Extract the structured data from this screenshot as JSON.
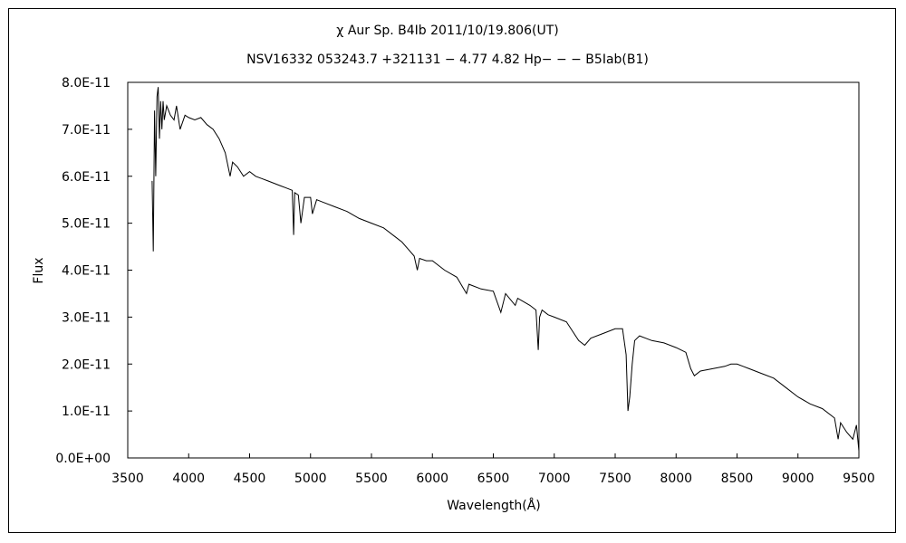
{
  "chart_data": {
    "type": "line",
    "title": "χ Aur    Sp. B4Ib   2011/10/19.806(UT)",
    "subtitle": "NSV16332 053243.7 +321131 − 4.77 4.82 Hp− − − B5Iab(B1)",
    "xlabel": "Wavelength(Å)",
    "ylabel": "Flux",
    "xlim": [
      3500,
      9500
    ],
    "ylim": [
      0,
      8e-11
    ],
    "x_ticks": [
      3500,
      4000,
      4500,
      5000,
      5500,
      6000,
      6500,
      7000,
      7500,
      8000,
      8500,
      9000,
      9500
    ],
    "x_tick_labels": [
      "3500",
      "4000",
      "4500",
      "5000",
      "5500",
      "6000",
      "6500",
      "7000",
      "7500",
      "8000",
      "8500",
      "9000",
      "9500"
    ],
    "y_ticks": [
      0,
      1e-11,
      2e-11,
      3e-11,
      4e-11,
      5e-11,
      6e-11,
      7e-11,
      8e-11
    ],
    "y_tick_labels": [
      "0.0E+00",
      "1.0E-11",
      "2.0E-11",
      "3.0E-11",
      "4.0E-11",
      "5.0E-11",
      "6.0E-11",
      "7.0E-11",
      "8.0E-11"
    ],
    "grid": false,
    "series": [
      {
        "x": [
          3700,
          3710,
          3720,
          3730,
          3740,
          3750,
          3760,
          3770,
          3780,
          3790,
          3800,
          3820,
          3850,
          3880,
          3900,
          3930,
          3970,
          4000,
          4050,
          4100,
          4150,
          4200,
          4250,
          4300,
          4320,
          4340,
          4360,
          4400,
          4450,
          4500,
          4550,
          4600,
          4650,
          4700,
          4750,
          4800,
          4850,
          4861,
          4870,
          4900,
          4921,
          4950,
          5000,
          5015,
          5050,
          5100,
          5200,
          5300,
          5400,
          5500,
          5600,
          5700,
          5750,
          5800,
          5850,
          5876,
          5895,
          5950,
          6000,
          6100,
          6200,
          6280,
          6300,
          6400,
          6500,
          6562,
          6600,
          6680,
          6700,
          6800,
          6850,
          6869,
          6880,
          6900,
          6950,
          7000,
          7100,
          7150,
          7200,
          7250,
          7300,
          7400,
          7500,
          7560,
          7590,
          7605,
          7620,
          7640,
          7660,
          7700,
          7750,
          7800,
          7900,
          8000,
          8080,
          8120,
          8150,
          8200,
          8300,
          8400,
          8450,
          8500,
          8550,
          8600,
          8700,
          8800,
          8900,
          9000,
          9100,
          9200,
          9300,
          9330,
          9350,
          9400,
          9450,
          9480,
          9500
        ],
        "y": [
          5.9e-11,
          4.4e-11,
          7.4e-11,
          6e-11,
          7.7e-11,
          7.9e-11,
          6.8e-11,
          7.6e-11,
          7e-11,
          7.6e-11,
          7.2e-11,
          7.5e-11,
          7.3e-11,
          7.2e-11,
          7.5e-11,
          7e-11,
          7.3e-11,
          7.25e-11,
          7.2e-11,
          7.25e-11,
          7.1e-11,
          7e-11,
          6.8e-11,
          6.5e-11,
          6.25e-11,
          6e-11,
          6.3e-11,
          6.2e-11,
          6e-11,
          6.1e-11,
          6e-11,
          5.95e-11,
          5.9e-11,
          5.85e-11,
          5.8e-11,
          5.75e-11,
          5.7e-11,
          4.75e-11,
          5.65e-11,
          5.6e-11,
          5e-11,
          5.55e-11,
          5.55e-11,
          5.2e-11,
          5.5e-11,
          5.45e-11,
          5.35e-11,
          5.25e-11,
          5.1e-11,
          5e-11,
          4.9e-11,
          4.7e-11,
          4.6e-11,
          4.45e-11,
          4.3e-11,
          4e-11,
          4.25e-11,
          4.2e-11,
          4.2e-11,
          4e-11,
          3.85e-11,
          3.5e-11,
          3.7e-11,
          3.6e-11,
          3.55e-11,
          3.1e-11,
          3.5e-11,
          3.25e-11,
          3.4e-11,
          3.25e-11,
          3.15e-11,
          2.3e-11,
          3e-11,
          3.15e-11,
          3.05e-11,
          3e-11,
          2.9e-11,
          2.7e-11,
          2.5e-11,
          2.4e-11,
          2.55e-11,
          2.65e-11,
          2.75e-11,
          2.75e-11,
          2.2e-11,
          1e-11,
          1.3e-11,
          2e-11,
          2.5e-11,
          2.6e-11,
          2.55e-11,
          2.5e-11,
          2.45e-11,
          2.35e-11,
          2.25e-11,
          1.9e-11,
          1.75e-11,
          1.85e-11,
          1.9e-11,
          1.95e-11,
          2e-11,
          2e-11,
          1.95e-11,
          1.9e-11,
          1.8e-11,
          1.7e-11,
          1.5e-11,
          1.3e-11,
          1.15e-11,
          1.05e-11,
          8.5e-12,
          4e-12,
          7.5e-12,
          5.5e-12,
          4e-12,
          7e-12,
          1.5e-12
        ]
      }
    ]
  }
}
